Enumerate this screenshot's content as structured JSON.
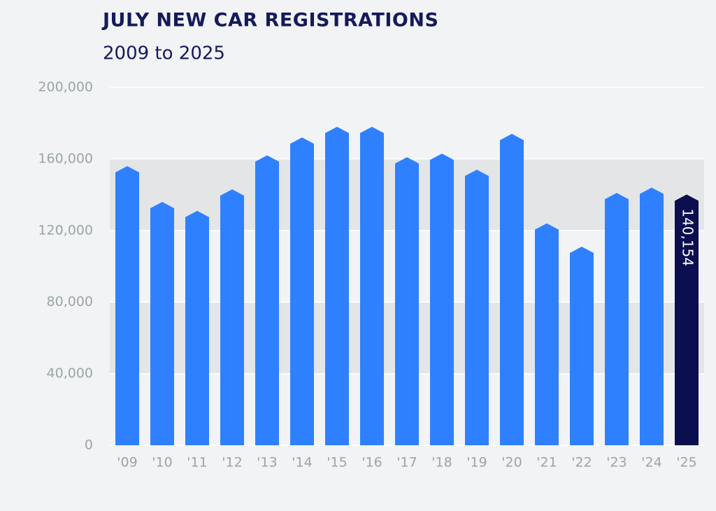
{
  "chart_data": {
    "type": "bar",
    "title": "JULY NEW CAR REGISTRATIONS",
    "subtitle": "2009 to 2025",
    "categories": [
      "'09",
      "'10",
      "'11",
      "'12",
      "'13",
      "'14",
      "'15",
      "'16",
      "'17",
      "'18",
      "'19",
      "'20",
      "'21",
      "'22",
      "'23",
      "'24",
      "'25"
    ],
    "values": [
      156000,
      136000,
      131000,
      143000,
      162000,
      172000,
      178000,
      178000,
      161000,
      163000,
      154000,
      174000,
      124000,
      111000,
      141000,
      144000,
      140154
    ],
    "value_labels": [
      null,
      null,
      null,
      null,
      null,
      null,
      null,
      null,
      null,
      null,
      null,
      null,
      null,
      null,
      null,
      null,
      "140,154"
    ],
    "colors": [
      "#2f80ff",
      "#2f80ff",
      "#2f80ff",
      "#2f80ff",
      "#2f80ff",
      "#2f80ff",
      "#2f80ff",
      "#2f80ff",
      "#2f80ff",
      "#2f80ff",
      "#2f80ff",
      "#2f80ff",
      "#2f80ff",
      "#2f80ff",
      "#2f80ff",
      "#2f80ff",
      "#0b0f4f"
    ],
    "ylim": [
      0,
      200000
    ],
    "yticks": [
      0,
      {
        "value": 40000,
        "label": "40,000"
      },
      {
        "value": 80000,
        "label": "80,000"
      },
      {
        "value": 120000,
        "label": "120,000"
      },
      {
        "value": 160000,
        "label": "160,000"
      },
      {
        "value": 200000,
        "label": "200,000"
      }
    ],
    "grid": true
  }
}
